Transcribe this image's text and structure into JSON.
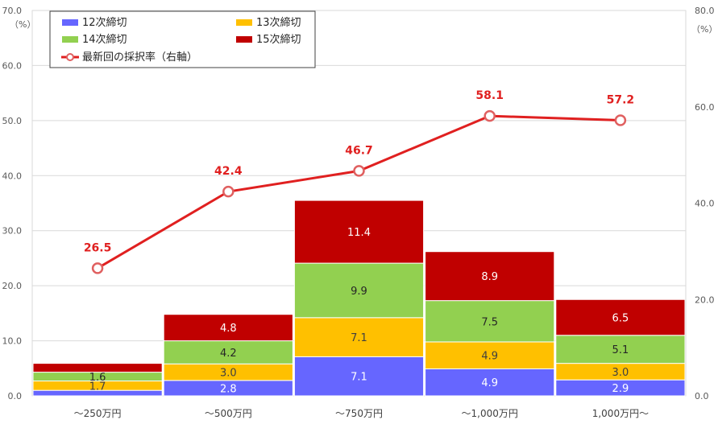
{
  "chart_data": {
    "type": "bar",
    "stacked": true,
    "categories": [
      "～250万円",
      "～500万円",
      "～750万円",
      "～1,000万円",
      "1,000万円～"
    ],
    "series": [
      {
        "name": "12次締切",
        "color": "#6666ff",
        "label_color": "#ffffff",
        "values": [
          1.0,
          2.8,
          7.1,
          4.9,
          2.9
        ],
        "labels": [
          "",
          "2.8",
          "7.1",
          "4.9",
          "2.9"
        ]
      },
      {
        "name": "13次締切",
        "color": "#ffc000",
        "label_color": "#404040",
        "values": [
          1.7,
          3.0,
          7.1,
          4.9,
          3.0
        ],
        "labels": [
          "1.7",
          "3.0",
          "7.1",
          "4.9",
          "3.0"
        ]
      },
      {
        "name": "14次締切",
        "color": "#92d050",
        "label_color": "#262626",
        "values": [
          1.6,
          4.2,
          9.9,
          7.5,
          5.1
        ],
        "labels": [
          "1.6",
          "4.2",
          "9.9",
          "7.5",
          "5.1"
        ]
      },
      {
        "name": "15次締切",
        "color": "#c00000",
        "label_color": "#ffffff",
        "values": [
          1.6,
          4.8,
          11.4,
          8.9,
          6.5
        ],
        "labels": [
          "",
          "4.8",
          "11.4",
          "8.9",
          "6.5"
        ]
      }
    ],
    "line": {
      "name": "最新回の採択率（右軸）",
      "color": "#e02020",
      "values": [
        26.5,
        42.4,
        46.7,
        58.1,
        57.2
      ],
      "labels": [
        "26.5",
        "42.4",
        "46.7",
        "58.1",
        "57.2"
      ]
    },
    "y_left": {
      "range": [
        0,
        70
      ],
      "ticks": [
        "0.0",
        "10.0",
        "20.0",
        "30.0",
        "40.0",
        "50.0",
        "60.0",
        "70.0"
      ],
      "unit": "（%）"
    },
    "y_right": {
      "range": [
        0,
        80
      ],
      "ticks": [
        "0.0",
        "20.0",
        "40.0",
        "60.0",
        "80.0"
      ],
      "unit": "（%）"
    },
    "grid": true,
    "legend_position": "top-left"
  }
}
